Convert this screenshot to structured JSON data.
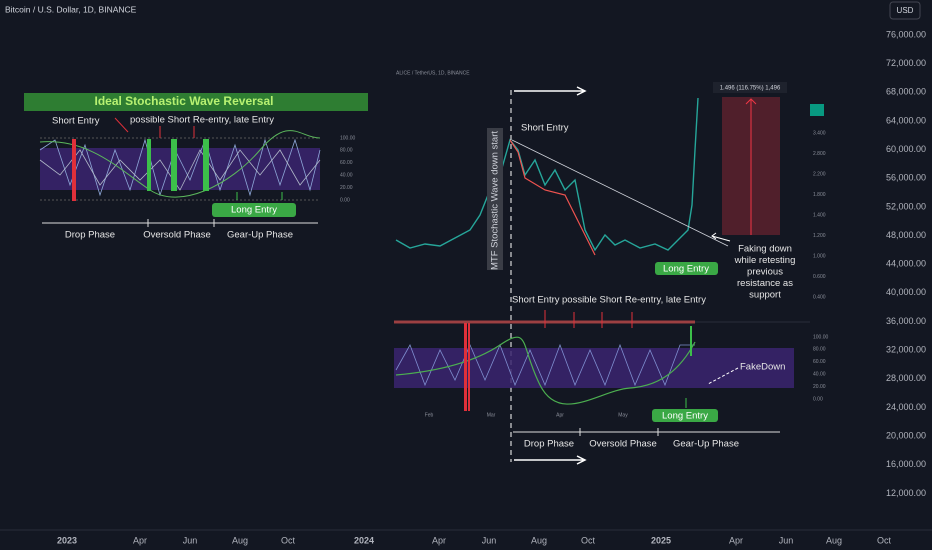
{
  "header": {
    "symbol": "Bitcoin / U.S. Dollar, 1D, BINANCE",
    "currency": "USD"
  },
  "price_axis": [
    "76,000.00",
    "72,000.00",
    "68,000.00",
    "64,000.00",
    "60,000.00",
    "56,000.00",
    "52,000.00",
    "48,000.00",
    "44,000.00",
    "40,000.00",
    "36,000.00",
    "32,000.00",
    "28,000.00",
    "24,000.00",
    "20,000.00",
    "16,000.00",
    "12,000.00"
  ],
  "time_axis": [
    "2023",
    "Apr",
    "Jun",
    "Aug",
    "Oct",
    "2024",
    "Apr",
    "Jun",
    "Aug",
    "Oct",
    "2025",
    "Apr",
    "Jun",
    "Aug",
    "Oct"
  ],
  "left_inset": {
    "title": "Ideal Stochastic Wave Reversal",
    "short_entry": "Short Entry",
    "re_entry": "possible Short Re-entry, late Entry",
    "long_entry": "Long Entry",
    "osc_scale": [
      "100.00",
      "80.00",
      "60.00",
      "40.00",
      "20.00",
      "0.00"
    ],
    "phases": [
      "Drop Phase",
      "Oversold Phase",
      "Gear-Up Phase"
    ]
  },
  "right_inset": {
    "symbol": "ALICE / TetherUS, 1D, BINANCE",
    "measurement": "1.496 (116.75%) 1,496",
    "vertical_note": "MTF Stochastic Wave down start",
    "short_entry": "Short Entry",
    "long_entry": "Long Entry",
    "fake_note": [
      "Faking down",
      "while retesting",
      "previous",
      "resistance as",
      "support"
    ],
    "price_scale": [
      "3.400",
      "2.800",
      "2.200",
      "1.800",
      "1.400",
      "1.200",
      "1.000",
      "0.600",
      "0.400"
    ],
    "osc_scale": [
      "100.00",
      "80.00",
      "60.00",
      "40.00",
      "20.00",
      "0.00"
    ],
    "lower_short_entry": "Short Entry",
    "lower_re_entry": "possible Short Re-entry, late Entry",
    "fakedown": "FakeDown",
    "lower_long_entry": "Long Entry",
    "time_labels": [
      "Feb",
      "Mar",
      "Apr",
      "May"
    ],
    "phases": [
      "Drop Phase",
      "Oversold Phase",
      "Gear-Up Phase"
    ]
  }
}
